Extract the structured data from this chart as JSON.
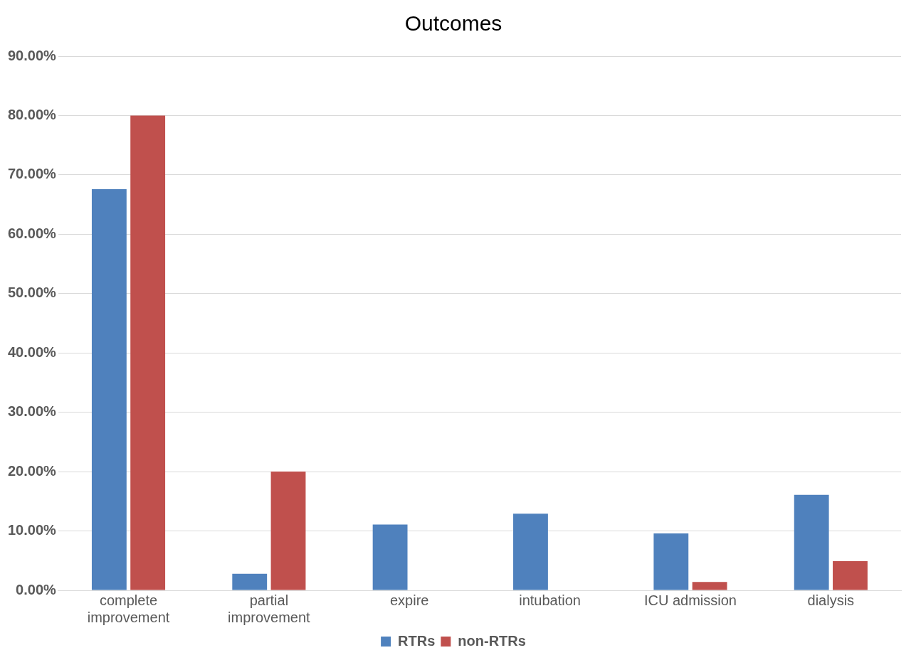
{
  "chart_data": {
    "type": "bar",
    "title": "Outcomes",
    "categories": [
      "complete improvement",
      "partial improvement",
      "expire",
      "intubation",
      "ICU admission",
      "dialysis"
    ],
    "series": [
      {
        "name": "RTRs",
        "color": "#4f81bd",
        "values": [
          67.6,
          2.8,
          11.1,
          12.9,
          9.6,
          16.1
        ]
      },
      {
        "name": "non-RTRs",
        "color": "#c0504d",
        "values": [
          80.0,
          20.0,
          0,
          0,
          1.4,
          4.9
        ]
      }
    ],
    "ylim": [
      0,
      90
    ],
    "yticks": [
      {
        "value": 0,
        "label": "0.00%"
      },
      {
        "value": 10,
        "label": "10.00%"
      },
      {
        "value": 20,
        "label": "20.00%"
      },
      {
        "value": 30,
        "label": "30.00%"
      },
      {
        "value": 40,
        "label": "40.00%"
      },
      {
        "value": 50,
        "label": "50.00%"
      },
      {
        "value": 60,
        "label": "60.00%"
      },
      {
        "value": 70,
        "label": "70.00%"
      },
      {
        "value": 80,
        "label": "80.00%"
      },
      {
        "value": 90,
        "label": "90.00%"
      }
    ],
    "grid": "y",
    "legend": "bottom"
  }
}
